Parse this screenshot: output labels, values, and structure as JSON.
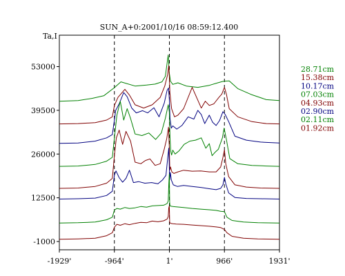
{
  "chart_data": {
    "type": "line",
    "title": "SUN_A+0:2001/10/16 08:59:12.400",
    "ylabel": "Ta,I",
    "xlabel": "",
    "y_ticks": [
      53000,
      39500,
      26000,
      12500,
      -1000
    ],
    "y_tick_labels": [
      "53000",
      "39500",
      "26000",
      "12500",
      "-1000"
    ],
    "ylim": [
      -1000,
      59500
    ],
    "x_ticks": [
      -1929,
      -964,
      1,
      966,
      1931
    ],
    "x_tick_labels": [
      "-1929'",
      "-964'",
      "1'",
      "966'",
      "1931'"
    ],
    "xlim": [
      -1929,
      1931
    ],
    "grid": false,
    "reference_lines_x": [
      -964,
      1,
      966
    ],
    "legend_position": "right",
    "colors": {
      "green": "#008000",
      "red": "#800000",
      "blue": "#000080"
    },
    "series": [
      {
        "name": "28.71cm",
        "color": "#008000",
        "x": [
          -1929,
          -1600,
          -1350,
          -1150,
          -964,
          -850,
          -600,
          -400,
          -250,
          -130,
          -70,
          -20,
          0,
          20,
          60,
          150,
          300,
          500,
          700,
          850,
          930,
          966,
          1050,
          1200,
          1450,
          1700,
          1931
        ],
        "values": [
          42300,
          42500,
          43200,
          44000,
          46500,
          48300,
          47000,
          47300,
          47600,
          48300,
          50000,
          56600,
          51000,
          48500,
          47500,
          48000,
          47000,
          46600,
          47200,
          48000,
          48400,
          48500,
          48600,
          46200,
          44300,
          42800,
          42500
        ]
      },
      {
        "name": "15.38cm",
        "color": "#800000",
        "x": [
          -1929,
          -1600,
          -1300,
          -1100,
          -1000,
          -964,
          -900,
          -780,
          -700,
          -600,
          -450,
          -300,
          -160,
          -80,
          -30,
          -10,
          0,
          10,
          40,
          90,
          150,
          250,
          400,
          560,
          630,
          700,
          780,
          870,
          920,
          966,
          1000,
          1050,
          1200,
          1450,
          1700,
          1931
        ],
        "values": [
          35300,
          35400,
          35700,
          36500,
          37500,
          41000,
          43500,
          46000,
          44200,
          41200,
          40200,
          41200,
          43500,
          47000,
          50500,
          53300,
          50000,
          45000,
          40000,
          37500,
          38000,
          40000,
          46600,
          40200,
          42300,
          41000,
          41500,
          43500,
          44500,
          46600,
          44500,
          40000,
          37500,
          36000,
          35400,
          35300
        ]
      },
      {
        "name": "10.17cm",
        "color": "#000080",
        "x": [
          -1929,
          -1600,
          -1300,
          -1100,
          -1000,
          -964,
          -940,
          -880,
          -800,
          -740,
          -660,
          -580,
          -470,
          -380,
          -270,
          -180,
          -90,
          -40,
          -15,
          0,
          12,
          35,
          60,
          130,
          220,
          330,
          430,
          500,
          560,
          620,
          700,
          760,
          820,
          880,
          940,
          980,
          1040,
          1150,
          1350,
          1600,
          1931
        ],
        "values": [
          29300,
          29400,
          30000,
          31000,
          32000,
          36500,
          39500,
          41500,
          45000,
          43700,
          40200,
          38700,
          39400,
          38700,
          40300,
          37500,
          41700,
          45600,
          46400,
          43000,
          37000,
          34000,
          34700,
          33700,
          34800,
          37500,
          36800,
          39500,
          38200,
          35400,
          38000,
          35800,
          34800,
          36300,
          39100,
          38200,
          36000,
          31500,
          30300,
          29700,
          29400
        ]
      },
      {
        "name": "07.03cm",
        "color": "#008000",
        "x": [
          -1929,
          -1600,
          -1300,
          -1100,
          -1000,
          -964,
          -920,
          -860,
          -800,
          -740,
          -680,
          -600,
          -480,
          -360,
          -240,
          -140,
          -70,
          -20,
          0,
          12,
          25,
          40,
          60,
          100,
          170,
          260,
          360,
          460,
          560,
          640,
          700,
          750,
          800,
          860,
          930,
          960,
          1000,
          1060,
          1200,
          1450,
          1700,
          1931
        ],
        "values": [
          22200,
          22300,
          22800,
          23800,
          25000,
          31000,
          38000,
          42300,
          36500,
          40000,
          37000,
          32200,
          31700,
          32500,
          30500,
          32500,
          37000,
          41200,
          39000,
          31000,
          26800,
          25700,
          27200,
          26000,
          27000,
          29000,
          30000,
          30300,
          31000,
          27800,
          29200,
          25500,
          26500,
          27500,
          31000,
          34000,
          30500,
          24600,
          23000,
          22500,
          22300,
          22200
        ]
      },
      {
        "name": "04.93cm",
        "color": "#800000",
        "x": [
          -1929,
          -1600,
          -1300,
          -1100,
          -1000,
          -964,
          -930,
          -880,
          -820,
          -760,
          -680,
          -600,
          -500,
          -420,
          -340,
          -250,
          -160,
          -90,
          -45,
          -15,
          0,
          8,
          20,
          45,
          80,
          150,
          250,
          400,
          550,
          700,
          820,
          900,
          940,
          966,
          990,
          1040,
          1150,
          1350,
          1600,
          1931
        ],
        "values": [
          15400,
          15500,
          16000,
          17000,
          18500,
          25500,
          31000,
          33400,
          29000,
          33000,
          30000,
          23500,
          23000,
          24000,
          24500,
          22500,
          23000,
          27500,
          30800,
          34300,
          28000,
          21000,
          22000,
          20500,
          20000,
          20500,
          21000,
          20700,
          20800,
          20500,
          20500,
          22000,
          25000,
          27300,
          23000,
          19000,
          16500,
          15800,
          15500,
          15400
        ]
      },
      {
        "name": "02.90cm",
        "color": "#000080",
        "x": [
          -1929,
          -1600,
          -1300,
          -1100,
          -1000,
          -964,
          -935,
          -880,
          -820,
          -760,
          -700,
          -630,
          -540,
          -430,
          -310,
          -200,
          -120,
          -60,
          -25,
          -10,
          0,
          6,
          18,
          35,
          70,
          140,
          250,
          400,
          550,
          700,
          820,
          900,
          940,
          966,
          990,
          1040,
          1150,
          1350,
          1600,
          1931
        ],
        "values": [
          12100,
          12200,
          12400,
          13200,
          14500,
          19500,
          20800,
          18700,
          17300,
          18500,
          21000,
          17200,
          17500,
          17000,
          17200,
          16800,
          18000,
          19400,
          25500,
          27800,
          22000,
          18000,
          20300,
          18000,
          16500,
          16000,
          16300,
          16000,
          15700,
          15300,
          15000,
          15400,
          16500,
          18800,
          16800,
          14000,
          12600,
          12300,
          12200,
          12100
        ]
      },
      {
        "name": "02.11cm",
        "color": "#008000",
        "x": [
          -1929,
          -1600,
          -1300,
          -1100,
          -1000,
          -964,
          -920,
          -860,
          -780,
          -700,
          -600,
          -500,
          -400,
          -300,
          -200,
          -100,
          -40,
          -20,
          -10,
          0,
          6,
          12,
          25,
          60,
          120,
          250,
          400,
          550,
          700,
          820,
          900,
          966,
          1010,
          1100,
          1300,
          1550,
          1931
        ],
        "values": [
          4700,
          4800,
          5000,
          5700,
          6500,
          8700,
          9200,
          9000,
          9500,
          9200,
          9400,
          9800,
          9600,
          10000,
          10100,
          10200,
          10700,
          11500,
          16500,
          19800,
          11000,
          10000,
          9900,
          9800,
          9700,
          9500,
          9200,
          9000,
          8800,
          8600,
          8300,
          8200,
          6500,
          5500,
          5000,
          4800,
          4700
        ]
      },
      {
        "name": "01.92cm",
        "color": "#800000",
        "x": [
          -1929,
          -1600,
          -1300,
          -1100,
          -1000,
          -964,
          -920,
          -860,
          -780,
          -700,
          -600,
          -500,
          -400,
          -300,
          -200,
          -100,
          -40,
          -20,
          -10,
          0,
          6,
          12,
          25,
          60,
          120,
          250,
          400,
          550,
          700,
          820,
          900,
          966,
          1010,
          1100,
          1300,
          1550,
          1931
        ],
        "values": [
          -300,
          -200,
          0,
          800,
          1700,
          3400,
          4300,
          4000,
          4500,
          4200,
          4600,
          4900,
          4800,
          5300,
          5100,
          5400,
          5900,
          6700,
          9400,
          10000,
          5000,
          4700,
          4600,
          4500,
          4400,
          4300,
          4100,
          3900,
          3700,
          3500,
          3300,
          2700,
          1700,
          600,
          0,
          -200,
          -300
        ]
      }
    ]
  }
}
